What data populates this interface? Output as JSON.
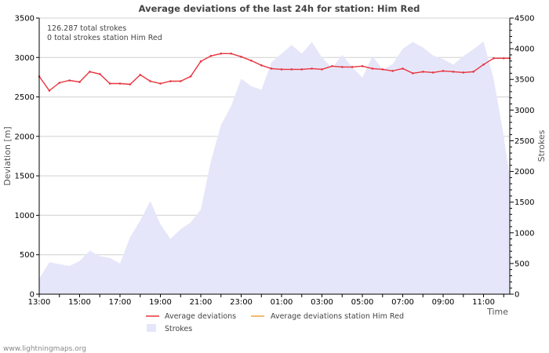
{
  "chart_data": {
    "type": "line",
    "title": "Average deviations of the last 24h for station: Him Red",
    "ylabel": "Deviation  [m]",
    "y2label": "Strokes",
    "xlabel": "Time",
    "ylim": [
      0,
      3500
    ],
    "y2lim": [
      0,
      4500
    ],
    "yticks": [
      0,
      500,
      1000,
      1500,
      2000,
      2500,
      3000,
      3500
    ],
    "y2ticks": [
      0,
      500,
      1000,
      1500,
      2000,
      2500,
      3000,
      3500,
      4000,
      4500
    ],
    "xlim": [
      0,
      23.3
    ],
    "xticks": [
      {
        "pos": 0,
        "label": "13:00"
      },
      {
        "pos": 2,
        "label": "15:00"
      },
      {
        "pos": 4,
        "label": "17:00"
      },
      {
        "pos": 6,
        "label": "19:00"
      },
      {
        "pos": 8,
        "label": "21:00"
      },
      {
        "pos": 10,
        "label": "23:00"
      },
      {
        "pos": 12,
        "label": "01:00"
      },
      {
        "pos": 14,
        "label": "03:00"
      },
      {
        "pos": 16,
        "label": "05:00"
      },
      {
        "pos": 18,
        "label": "07:00"
      },
      {
        "pos": 20,
        "label": "09:00"
      },
      {
        "pos": 22,
        "label": "11:00"
      }
    ],
    "annotations": [
      "126.287 total strokes",
      "0 total strokes station Him Red"
    ],
    "series": [
      {
        "name": "Average deviations",
        "axis": "left",
        "color": "#e8333d",
        "x": [
          0,
          0.5,
          1,
          1.5,
          2,
          2.5,
          3,
          3.5,
          4,
          4.5,
          5,
          5.5,
          6,
          6.5,
          7,
          7.5,
          8,
          8.5,
          9,
          9.5,
          10,
          10.5,
          11,
          11.5,
          12,
          12.5,
          13,
          13.5,
          14,
          14.5,
          15,
          15.5,
          16,
          16.5,
          17,
          17.5,
          18,
          18.5,
          19,
          19.5,
          20,
          20.5,
          21,
          21.5,
          22,
          22.5,
          23,
          23.3
        ],
        "values": [
          2760,
          2580,
          2680,
          2710,
          2690,
          2820,
          2790,
          2670,
          2670,
          2660,
          2780,
          2700,
          2670,
          2700,
          2700,
          2760,
          2950,
          3020,
          3050,
          3050,
          3010,
          2960,
          2900,
          2860,
          2850,
          2850,
          2850,
          2860,
          2850,
          2890,
          2880,
          2880,
          2890,
          2860,
          2850,
          2830,
          2860,
          2800,
          2820,
          2810,
          2830,
          2820,
          2810,
          2820,
          2910,
          2990,
          2990,
          2990
        ]
      },
      {
        "name": "Average deviations station Him Red",
        "axis": "left",
        "color": "#f0a040",
        "x": [],
        "values": []
      },
      {
        "name": "Strokes",
        "axis": "right",
        "type": "area",
        "color": "#e6e6fa",
        "x": [
          0,
          0.5,
          1,
          1.5,
          2,
          2.5,
          3,
          3.5,
          4,
          4.5,
          5,
          5.5,
          6,
          6.5,
          7,
          7.5,
          8,
          8.5,
          9,
          9.5,
          10,
          10.5,
          11,
          11.5,
          12,
          12.5,
          13,
          13.5,
          14,
          14.5,
          15,
          15.5,
          16,
          16.5,
          17,
          17.5,
          18,
          18.5,
          19,
          19.5,
          20,
          20.5,
          21,
          21.5,
          22,
          22.5,
          23,
          23.3
        ],
        "values": [
          250,
          520,
          490,
          460,
          540,
          710,
          620,
          590,
          500,
          930,
          1200,
          1520,
          1140,
          900,
          1060,
          1170,
          1380,
          2170,
          2760,
          3060,
          3510,
          3390,
          3330,
          3780,
          3920,
          4060,
          3920,
          4110,
          3860,
          3680,
          3900,
          3700,
          3530,
          3880,
          3660,
          3750,
          4000,
          4110,
          4020,
          3890,
          3830,
          3740,
          3880,
          3990,
          4120,
          3510,
          2580,
          1900
        ]
      }
    ],
    "legend": [
      {
        "label": "Average deviations",
        "kind": "line",
        "color": "#e8333d"
      },
      {
        "label": "Average deviations station Him Red",
        "kind": "line",
        "color": "#f0a040"
      },
      {
        "label": "Strokes",
        "kind": "area",
        "color": "#e6e6fa"
      }
    ]
  },
  "footer": "www.lightningmaps.org"
}
